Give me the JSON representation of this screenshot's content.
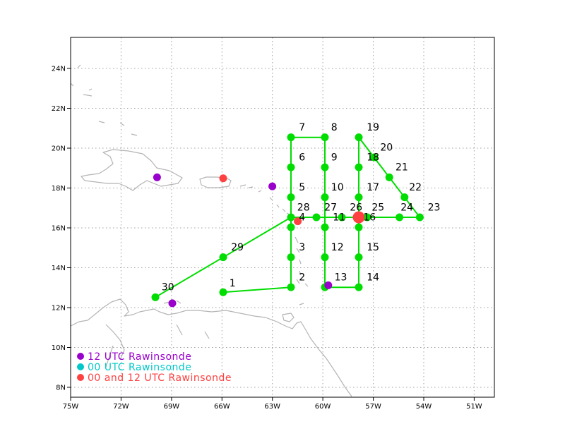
{
  "map": {
    "lon_ticks": [
      "75W",
      "72W",
      "69W",
      "66W",
      "63W",
      "60W",
      "57W",
      "54W",
      "51W"
    ],
    "lat_ticks": [
      "24N",
      "22N",
      "20N",
      "18N",
      "16N",
      "14N",
      "12N",
      "10N",
      "8N"
    ],
    "colors": {
      "track": "#00dd00",
      "point": "#00dd00",
      "purple": "#9900cc",
      "cyan": "#00c8c8",
      "red": "#ff4040",
      "coast": "#b4b4b4",
      "grid": "#a0a0a0"
    },
    "track": [
      {
        "id": "1",
        "lon": -66.0,
        "lat": 12.75
      },
      {
        "id": "2",
        "lon": -62.0,
        "lat": 13.0
      },
      {
        "id": "3",
        "lon": -62.0,
        "lat": 14.5
      },
      {
        "id": "4",
        "lon": -62.0,
        "lat": 16.0
      },
      {
        "id": "5",
        "lon": -62.0,
        "lat": 17.5
      },
      {
        "id": "6",
        "lon": -62.0,
        "lat": 19.0
      },
      {
        "id": "7",
        "lon": -62.0,
        "lat": 20.5
      },
      {
        "id": "8",
        "lon": -60.0,
        "lat": 20.5
      },
      {
        "id": "9",
        "lon": -60.0,
        "lat": 19.0
      },
      {
        "id": "10",
        "lon": -60.0,
        "lat": 17.5
      },
      {
        "id": "11",
        "lon": -60.0,
        "lat": 16.0
      },
      {
        "id": "12",
        "lon": -60.0,
        "lat": 14.5
      },
      {
        "id": "13",
        "lon": -60.0,
        "lat": 13.0
      },
      {
        "id": "14",
        "lon": -58.0,
        "lat": 13.0
      },
      {
        "id": "15",
        "lon": -58.0,
        "lat": 14.5
      },
      {
        "id": "16",
        "lon": -58.0,
        "lat": 16.0
      },
      {
        "id": "17",
        "lon": -58.0,
        "lat": 17.5
      },
      {
        "id": "18",
        "lon": -58.0,
        "lat": 19.0
      },
      {
        "id": "19",
        "lon": -58.0,
        "lat": 20.5
      },
      {
        "id": "20",
        "lon": -57.1,
        "lat": 19.5
      },
      {
        "id": "21",
        "lon": -56.2,
        "lat": 18.5
      },
      {
        "id": "22",
        "lon": -55.3,
        "lat": 17.5
      },
      {
        "id": "23",
        "lon": -54.4,
        "lat": 16.5
      },
      {
        "id": "24",
        "lon": -55.6,
        "lat": 16.5
      },
      {
        "id": "25",
        "lon": -57.5,
        "lat": 16.5
      },
      {
        "id": "26",
        "lon": -59.0,
        "lat": 16.5
      },
      {
        "id": "27",
        "lon": -60.5,
        "lat": 16.5
      },
      {
        "id": "28",
        "lon": -62.0,
        "lat": 16.5
      },
      {
        "id": "29",
        "lon": -66.0,
        "lat": 14.5
      },
      {
        "id": "30",
        "lon": -70.0,
        "lat": 12.5
      }
    ],
    "labels": [
      {
        "text": "1",
        "lon": -65.8,
        "lat": 12.9
      },
      {
        "text": "2",
        "lon": -61.7,
        "lat": 13.2
      },
      {
        "text": "3",
        "lon": -61.7,
        "lat": 14.7
      },
      {
        "text": "4",
        "lon": -61.7,
        "lat": 16.2
      },
      {
        "text": "5",
        "lon": -61.7,
        "lat": 17.7
      },
      {
        "text": "6",
        "lon": -61.7,
        "lat": 19.2
      },
      {
        "text": "7",
        "lon": -61.7,
        "lat": 20.7
      },
      {
        "text": "8",
        "lon": -59.8,
        "lat": 20.7
      },
      {
        "text": "9",
        "lon": -59.8,
        "lat": 19.2
      },
      {
        "text": "10",
        "lon": -59.8,
        "lat": 17.7
      },
      {
        "text": "11",
        "lon": -59.7,
        "lat": 16.2
      },
      {
        "text": "12",
        "lon": -59.8,
        "lat": 14.7
      },
      {
        "text": "13",
        "lon": -59.6,
        "lat": 13.2
      },
      {
        "text": "14",
        "lon": -57.7,
        "lat": 13.2
      },
      {
        "text": "15",
        "lon": -57.7,
        "lat": 14.7
      },
      {
        "text": "16",
        "lon": -57.9,
        "lat": 16.2
      },
      {
        "text": "17",
        "lon": -57.7,
        "lat": 17.7
      },
      {
        "text": "18",
        "lon": -57.7,
        "lat": 19.2
      },
      {
        "text": "19",
        "lon": -57.7,
        "lat": 20.7
      },
      {
        "text": "20",
        "lon": -56.9,
        "lat": 19.7
      },
      {
        "text": "21",
        "lon": -56.0,
        "lat": 18.7
      },
      {
        "text": "22",
        "lon": -55.2,
        "lat": 17.7
      },
      {
        "text": "23",
        "lon": -54.1,
        "lat": 16.7
      },
      {
        "text": "24",
        "lon": -55.7,
        "lat": 16.7
      },
      {
        "text": "25",
        "lon": -57.4,
        "lat": 16.7
      },
      {
        "text": "26",
        "lon": -58.7,
        "lat": 16.7
      },
      {
        "text": "27",
        "lon": -60.2,
        "lat": 16.7
      },
      {
        "text": "28",
        "lon": -61.8,
        "lat": 16.7
      },
      {
        "text": "29",
        "lon": -65.7,
        "lat": 14.7
      },
      {
        "text": "30",
        "lon": -69.8,
        "lat": 12.7
      }
    ],
    "sondes": [
      {
        "type": "purple",
        "lon": -69.9,
        "lat": 18.5
      },
      {
        "type": "purple",
        "lon": -63.1,
        "lat": 18.05
      },
      {
        "type": "purple",
        "lon": -69.0,
        "lat": 12.2
      },
      {
        "type": "purple",
        "lon": -59.8,
        "lat": 13.1
      },
      {
        "type": "red",
        "lon": -66.0,
        "lat": 18.45
      },
      {
        "type": "red",
        "lon": -61.6,
        "lat": 16.3
      },
      {
        "type": "red-large",
        "lon": -58.0,
        "lat": 16.5
      }
    ],
    "legend": [
      {
        "text": "12 UTC Rawinsonde",
        "type": "purple"
      },
      {
        "text": "00 UTC Rawinsonde",
        "type": "cyan"
      },
      {
        "text": "00 and 12 UTC Rawinsonde",
        "type": "red"
      }
    ]
  }
}
